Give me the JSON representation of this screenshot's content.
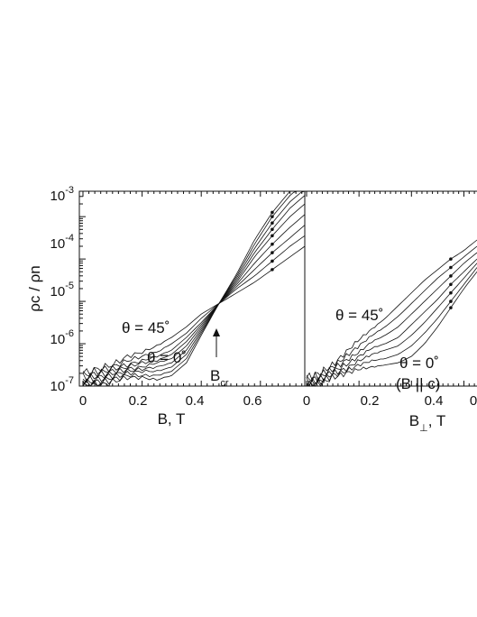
{
  "chart_data": [
    {
      "type": "line",
      "title": "",
      "ylabel": "ρc / ρn",
      "xlabel_main": "B, T",
      "xlim": [
        0,
        0.75
      ],
      "ylim_log10": [
        -7,
        -2.4
      ],
      "yscale": "log",
      "xticks": [
        "0",
        "0.2",
        "0.4",
        "0.6"
      ],
      "yticks": [
        {
          "mant": "10",
          "exp": "-7"
        },
        {
          "mant": "10",
          "exp": "-6"
        },
        {
          "mant": "10",
          "exp": "-5"
        },
        {
          "mant": "10",
          "exp": "-4"
        },
        {
          "mant": "10",
          "exp": "-3"
        }
      ],
      "annotations": {
        "top_label": "θ  = 45˚",
        "bottom_label": "θ  = 0˚",
        "crossing_label_main": "B",
        "crossing_label_sub": "cr"
      },
      "crossing_point": [
        0.46,
        -5.05
      ],
      "series_log10": {
        "x": [
          0.0,
          0.05,
          0.1,
          0.15,
          0.2,
          0.25,
          0.3,
          0.35,
          0.4,
          0.46,
          0.52,
          0.58,
          0.64,
          0.7,
          0.75
        ],
        "curves": [
          [
            -6.7,
            -6.6,
            -6.5,
            -6.3,
            -6.2,
            -6.05,
            -5.85,
            -5.6,
            -5.3,
            -5.05,
            -4.8,
            -4.55,
            -4.25,
            -3.95,
            -3.7
          ],
          [
            -6.75,
            -6.65,
            -6.55,
            -6.4,
            -6.3,
            -6.2,
            -6.0,
            -5.75,
            -5.4,
            -5.05,
            -4.7,
            -4.4,
            -4.05,
            -3.7,
            -3.45
          ],
          [
            -6.8,
            -6.7,
            -6.6,
            -6.5,
            -6.4,
            -6.3,
            -6.15,
            -5.85,
            -5.5,
            -5.05,
            -4.65,
            -4.25,
            -3.85,
            -3.5,
            -3.2
          ],
          [
            -6.85,
            -6.75,
            -6.65,
            -6.55,
            -6.45,
            -6.4,
            -6.25,
            -5.95,
            -5.55,
            -5.05,
            -4.6,
            -4.1,
            -3.65,
            -3.25,
            -2.95
          ],
          [
            -6.9,
            -6.8,
            -6.7,
            -6.6,
            -6.55,
            -6.45,
            -6.35,
            -6.05,
            -5.6,
            -5.05,
            -4.55,
            -3.95,
            -3.45,
            -3.0,
            -2.7
          ],
          [
            -6.95,
            -6.85,
            -6.75,
            -6.65,
            -6.6,
            -6.55,
            -6.45,
            -6.15,
            -5.65,
            -5.05,
            -4.5,
            -3.85,
            -3.3,
            -2.8,
            -2.5
          ],
          [
            -7.0,
            -6.9,
            -6.8,
            -6.7,
            -6.65,
            -6.65,
            -6.55,
            -6.25,
            -5.7,
            -5.05,
            -4.45,
            -3.75,
            -3.15,
            -2.65,
            -2.35
          ],
          [
            -7.0,
            -6.95,
            -6.85,
            -6.75,
            -6.75,
            -6.75,
            -6.65,
            -6.35,
            -5.75,
            -5.05,
            -4.4,
            -3.65,
            -3.0,
            -2.5,
            -2.2
          ],
          [
            -7.0,
            -7.0,
            -6.9,
            -6.8,
            -6.8,
            -6.85,
            -6.75,
            -6.45,
            -5.8,
            -5.05,
            -4.35,
            -3.55,
            -2.9,
            -2.4,
            -2.1
          ]
        ]
      }
    },
    {
      "type": "line",
      "title": "",
      "xlabel_main": "B",
      "xlabel_sub": "⊥",
      "xlabel_tail": ", T",
      "xlim": [
        0,
        0.65
      ],
      "ylim_log10": [
        -7,
        -2.4
      ],
      "yscale": "log",
      "xticks": [
        "0",
        "0.2",
        "0.4",
        "0"
      ],
      "annotations": {
        "top_label": "θ  = 45˚",
        "bottom_label": "θ  = 0˚",
        "bottom_label_2": "(B || c)"
      },
      "series_log10": {
        "x": [
          0.0,
          0.05,
          0.1,
          0.15,
          0.2,
          0.25,
          0.3,
          0.35,
          0.4,
          0.45,
          0.5,
          0.55,
          0.6,
          0.65
        ],
        "curves": [
          [
            -6.8,
            -6.7,
            -6.5,
            -6.2,
            -5.9,
            -5.65,
            -5.4,
            -5.1,
            -4.8,
            -4.5,
            -4.25,
            -4.0,
            -3.8,
            -3.55
          ],
          [
            -6.85,
            -6.75,
            -6.55,
            -6.3,
            -6.05,
            -5.8,
            -5.6,
            -5.35,
            -5.05,
            -4.75,
            -4.45,
            -4.2,
            -3.95,
            -3.7
          ],
          [
            -6.9,
            -6.8,
            -6.6,
            -6.4,
            -6.2,
            -5.95,
            -5.8,
            -5.6,
            -5.3,
            -5.0,
            -4.7,
            -4.4,
            -4.1,
            -3.85
          ],
          [
            -6.95,
            -6.85,
            -6.65,
            -6.5,
            -6.3,
            -6.1,
            -6.0,
            -5.85,
            -5.55,
            -5.25,
            -4.95,
            -4.6,
            -4.3,
            -4.0
          ],
          [
            -7.0,
            -6.9,
            -6.7,
            -6.6,
            -6.4,
            -6.25,
            -6.15,
            -6.05,
            -5.8,
            -5.5,
            -5.15,
            -4.8,
            -4.45,
            -4.1
          ],
          [
            -7.0,
            -6.9,
            -6.75,
            -6.65,
            -6.5,
            -6.4,
            -6.35,
            -6.25,
            -6.05,
            -5.75,
            -5.4,
            -5.0,
            -4.6,
            -4.2
          ],
          [
            -7.0,
            -6.95,
            -6.8,
            -6.7,
            -6.6,
            -6.55,
            -6.5,
            -6.45,
            -6.3,
            -6.0,
            -5.6,
            -5.15,
            -4.7,
            -4.3
          ]
        ]
      }
    }
  ]
}
